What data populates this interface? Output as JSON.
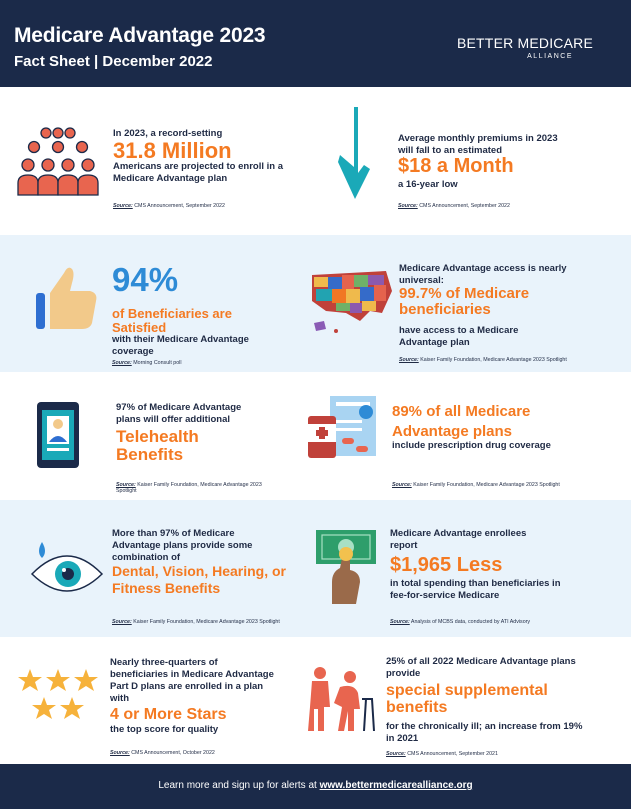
{
  "header": {
    "title": "Medicare Advantage 2023",
    "subtitle": "Fact Sheet | December 2022",
    "logo_main": "BETTER MEDICARE",
    "logo_sub": "ALLIANCE"
  },
  "facts": {
    "enroll": {
      "pre": "In 2023, a record-setting",
      "big": "31.8 Million",
      "post": "Americans are projected to enroll in a Medicare Advantage plan",
      "source_label": "Source:",
      "source": "CMS Announcement, September 2022",
      "icon": "people-group-icon"
    },
    "premium": {
      "pre": "Average monthly premiums in 2023 will fall to an estimated",
      "big": "$18 a Month",
      "post": "a 16-year low",
      "source_label": "Source:",
      "source": "CMS Announcement, September 2022",
      "icon": "down-arrow-icon"
    },
    "satisfied": {
      "big_pct": "94%",
      "big": "of Beneficiaries are Satisfied",
      "post": "with their Medicare Advantage coverage",
      "source_label": "Source:",
      "source": "Morning Consult poll",
      "icon": "thumbs-up-icon"
    },
    "access": {
      "pre": "Medicare Advantage access is nearly universal:",
      "big": "99.7% of Medicare beneficiaries",
      "post": "have access to a Medicare Advantage plan",
      "source_label": "Source:",
      "source": "Kaiser Family Foundation, Medicare Advantage 2023 Spotlight",
      "icon": "us-map-icon"
    },
    "telehealth": {
      "pre": "97% of Medicare Advantage plans will offer additional",
      "big": "Telehealth Benefits",
      "source_label": "Source:",
      "source": "Kaiser Family Foundation, Medicare Advantage 2023 Spotlight",
      "icon": "tablet-doctor-icon"
    },
    "rx": {
      "big": "89% of all Medicare Advantage plans",
      "post": "include prescription drug coverage",
      "source_label": "Source:",
      "source": "Kaiser Family Foundation, Medicare Advantage 2023 Spotlight",
      "icon": "prescription-icon"
    },
    "dental": {
      "pre": "More than 97% of Medicare Advantage plans provide some combination of",
      "big": "Dental, Vision, Hearing, or Fitness Benefits",
      "source_label": "Source:",
      "source": "Kaiser Family Foundation, Medicare Advantage 2023 Spotlight",
      "icon": "eye-icon"
    },
    "spending": {
      "pre": "Medicare Advantage enrollees report",
      "big": "$1,965 Less",
      "post": "in total spending than beneficiaries in fee-for-service Medicare",
      "source_label": "Source:",
      "source": "Analysis of MCBS data, conducted by ATI Advisory",
      "icon": "money-hand-icon"
    },
    "stars": {
      "pre": "Nearly three-quarters of beneficiaries in Medicare Advantage Part D plans are enrolled in a plan with",
      "big": "4 or More Stars",
      "post": "the top score for quality",
      "source_label": "Source:",
      "source": "CMS Announcement, October 2022",
      "icon": "stars-icon"
    },
    "supplemental": {
      "pre": "25% of all 2022 Medicare Advantage plans provide",
      "big": "special supplemental benefits",
      "post": "for the chronically ill; an increase from 19% in 2021",
      "source_label": "Source:",
      "source": "CMS Announcement, September 2021",
      "icon": "caregiver-icon"
    }
  },
  "footer": {
    "text": "Learn more and sign up for alerts at",
    "url": "www.bettermedicarealliance.org"
  },
  "colors": {
    "navy": "#1b2a49",
    "orange": "#f47a22",
    "light_blue_band": "#e9f3fb",
    "teal": "#1aa9b8"
  }
}
